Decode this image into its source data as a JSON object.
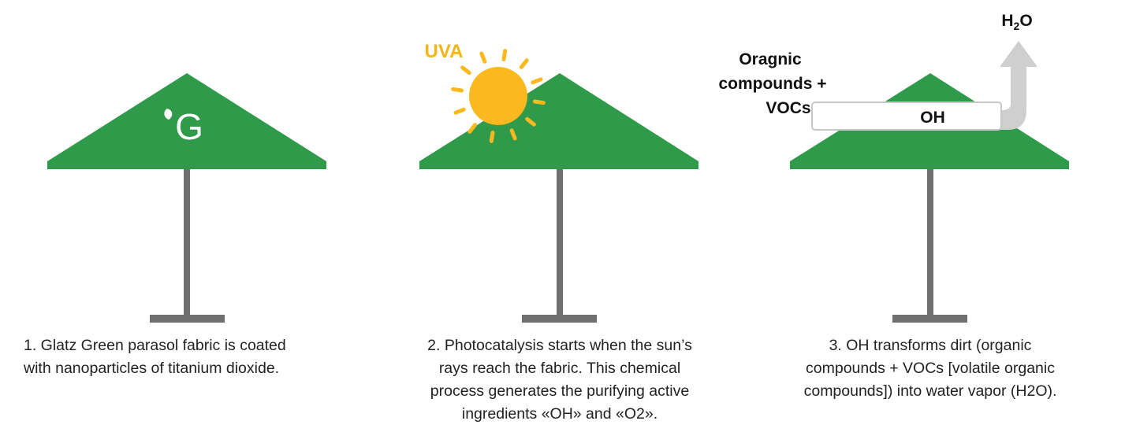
{
  "panels": [
    {
      "logo": "G",
      "caption": [
        "1. Glatz Green parasol fabric is coated",
        "with nanoparticles of titanium dioxide."
      ]
    },
    {
      "label": "UVA",
      "caption": [
        "2. Photocatalysis starts when the sun’s",
        "rays reach the fabric. This chemical",
        "process generates the purifying active",
        "ingredients «OH» and «O2»."
      ]
    },
    {
      "input": [
        "Oragnic",
        "compounds +",
        "VOCs"
      ],
      "process": "OH",
      "output": {
        "base": "H",
        "sub": "2",
        "end": "O"
      },
      "caption": [
        "3. OH transforms dirt (organic",
        "compounds + VOCs [volatile organic",
        "compounds]) into water vapor (H2O)."
      ]
    }
  ]
}
